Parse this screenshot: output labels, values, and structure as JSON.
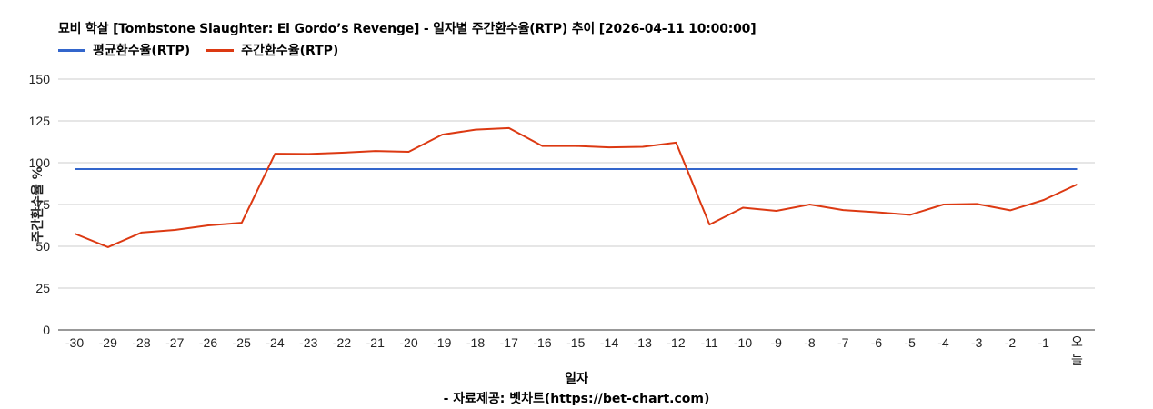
{
  "title": "묘비 학살 [Tombstone Slaughter: El Gordo’s Revenge] - 일자별 주간환수율(RTP) 추이 [2026-04-11 10:00:00]",
  "legend": [
    {
      "label": "평균환수율(RTP)",
      "color": "#3366cc"
    },
    {
      "label": "주간환수율(RTP)",
      "color": "#dc3912"
    }
  ],
  "x_axis_label": "일자",
  "y_axis_label": "주간환수율 %",
  "credit": "- 자료제공: 벳차트(https://bet-chart.com)",
  "chart_data": {
    "type": "line",
    "title": "묘비 학살 [Tombstone Slaughter: El Gordo’s Revenge] - 일자별 주간환수율(RTP) 추이 [2026-04-11 10:00:00]",
    "xlabel": "일자",
    "ylabel": "주간환수율 %",
    "ylim": [
      0,
      150
    ],
    "yticks": [
      0,
      25,
      50,
      75,
      100,
      125,
      150
    ],
    "grid": true,
    "legend_position": "top",
    "categories": [
      "-30",
      "-29",
      "-28",
      "-27",
      "-26",
      "-25",
      "-24",
      "-23",
      "-22",
      "-21",
      "-20",
      "-19",
      "-18",
      "-17",
      "-16",
      "-15",
      "-14",
      "-13",
      "-12",
      "-11",
      "-10",
      "-9",
      "-8",
      "-7",
      "-6",
      "-5",
      "-4",
      "-3",
      "-2",
      "-1",
      "오늘"
    ],
    "series": [
      {
        "name": "평균환수율(RTP)",
        "color": "#3366cc",
        "values": [
          96.2,
          96.2,
          96.2,
          96.2,
          96.2,
          96.2,
          96.2,
          96.2,
          96.2,
          96.2,
          96.2,
          96.2,
          96.2,
          96.2,
          96.2,
          96.2,
          96.2,
          96.2,
          96.2,
          96.2,
          96.2,
          96.2,
          96.2,
          96.2,
          96.2,
          96.2,
          96.2,
          96.2,
          96.2,
          96.2,
          96.2
        ]
      },
      {
        "name": "주간환수율(RTP)",
        "color": "#dc3912",
        "values": [
          57.6,
          49.5,
          58.2,
          59.8,
          62.5,
          64.1,
          105.4,
          105.2,
          106.0,
          107.0,
          106.5,
          116.8,
          119.8,
          120.7,
          110.0,
          110.0,
          109.2,
          109.5,
          112.0,
          63.0,
          73.1,
          71.2,
          75.0,
          71.7,
          70.4,
          68.8,
          75.0,
          75.3,
          71.5,
          77.7,
          87.0
        ]
      }
    ]
  }
}
